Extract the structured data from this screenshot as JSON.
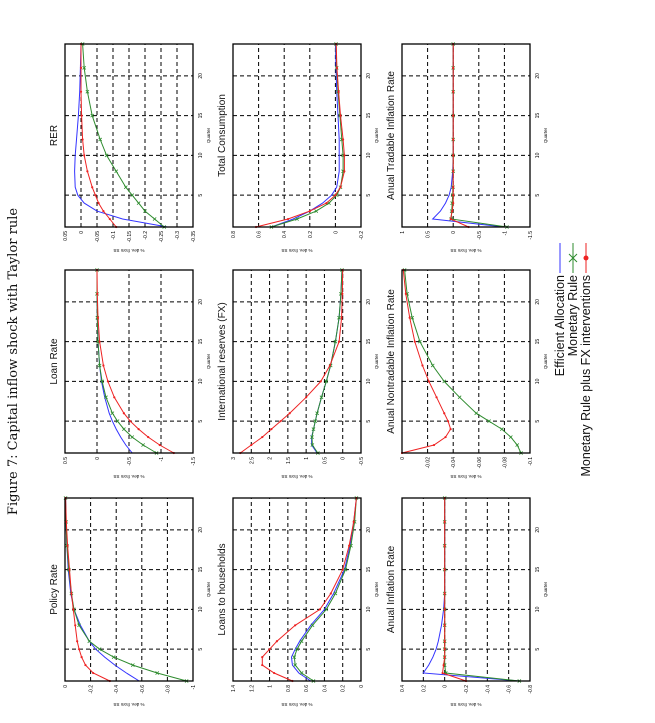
{
  "caption": "Figure 7:  Capital inflow shock with Taylor rule",
  "legend": [
    {
      "label": "Efficient Allocation",
      "color": "#3333ff",
      "marker": "none"
    },
    {
      "label": "Monetary Rule",
      "color": "#2e8b2e",
      "marker": "x"
    },
    {
      "label": "Monetary Rule plus FX interventions",
      "color": "#ee2222",
      "marker": "dot"
    }
  ],
  "chart_data": [
    {
      "type": "line",
      "title": "Policy Rate",
      "xlabel": "Quarter",
      "ylabel": "% dev. from SS",
      "xlim": [
        1,
        24
      ],
      "xticks": [
        5,
        10,
        15,
        20
      ],
      "ylim": [
        -1,
        0
      ],
      "yticks": [
        0,
        -0.2,
        -0.4,
        -0.6,
        -0.8,
        -1
      ],
      "grid": true,
      "x": [
        1,
        2,
        3,
        4,
        5,
        6,
        8,
        10,
        12,
        15,
        18,
        21,
        24
      ],
      "series": [
        {
          "name": "Efficient Allocation",
          "values": [
            -0.58,
            -0.48,
            -0.39,
            -0.31,
            -0.24,
            -0.19,
            -0.12,
            -0.07,
            -0.045,
            -0.025,
            -0.015,
            -0.008,
            -0.005
          ]
        },
        {
          "name": "Monetary Rule",
          "values": [
            -0.95,
            -0.72,
            -0.53,
            -0.38,
            -0.27,
            -0.19,
            -0.11,
            -0.07,
            -0.05,
            -0.03,
            -0.015,
            -0.008,
            -0.004
          ]
        },
        {
          "name": "Monetary Rule plus FX interventions",
          "values": [
            -0.35,
            -0.22,
            -0.16,
            -0.13,
            -0.11,
            -0.095,
            -0.08,
            -0.065,
            -0.05,
            -0.035,
            -0.02,
            -0.01,
            -0.005
          ]
        }
      ]
    },
    {
      "type": "line",
      "title": "Loan Rate",
      "xlabel": "Quarter",
      "ylabel": "% dev. from SS",
      "xlim": [
        1,
        24
      ],
      "xticks": [
        5,
        10,
        15,
        20
      ],
      "ylim": [
        -1.5,
        0.5
      ],
      "yticks": [
        0.5,
        0,
        -0.5,
        -1,
        -1.5
      ],
      "grid": true,
      "x": [
        1,
        2,
        3,
        4,
        5,
        6,
        8,
        10,
        12,
        15,
        18,
        21,
        24
      ],
      "series": [
        {
          "name": "Efficient Allocation",
          "values": [
            -0.55,
            -0.45,
            -0.37,
            -0.3,
            -0.24,
            -0.19,
            -0.12,
            -0.07,
            -0.04,
            -0.015,
            -0.005,
            0,
            0
          ]
        },
        {
          "name": "Monetary Rule",
          "values": [
            -0.93,
            -0.72,
            -0.55,
            -0.42,
            -0.32,
            -0.24,
            -0.14,
            -0.08,
            -0.04,
            -0.015,
            -0.005,
            0,
            0
          ]
        },
        {
          "name": "Monetary Rule plus FX interventions",
          "values": [
            -1.2,
            -0.98,
            -0.8,
            -0.65,
            -0.52,
            -0.42,
            -0.27,
            -0.17,
            -0.1,
            -0.04,
            -0.015,
            -0.005,
            0
          ]
        }
      ]
    },
    {
      "type": "line",
      "title": "RER",
      "xlabel": "Quarter",
      "ylabel": "% dev. from SS",
      "xlim": [
        1,
        24
      ],
      "xticks": [
        5,
        10,
        15,
        20
      ],
      "ylim": [
        -0.35,
        0.05
      ],
      "yticks": [
        0.05,
        0,
        -0.05,
        -0.1,
        -0.15,
        -0.2,
        -0.25,
        -0.3,
        -0.35
      ],
      "grid": true,
      "x": [
        1,
        2,
        3,
        4,
        5,
        6,
        8,
        10,
        12,
        15,
        18,
        21,
        24
      ],
      "series": [
        {
          "name": "Efficient Allocation",
          "values": [
            -0.27,
            -0.13,
            -0.05,
            -0.01,
            0.01,
            0.018,
            0.02,
            0.018,
            0.014,
            0.008,
            0.004,
            0.002,
            0
          ]
        },
        {
          "name": "Monetary Rule",
          "values": [
            -0.26,
            -0.23,
            -0.2,
            -0.18,
            -0.16,
            -0.14,
            -0.11,
            -0.08,
            -0.06,
            -0.035,
            -0.02,
            -0.01,
            -0.005
          ]
        },
        {
          "name": "Monetary Rule plus FX interventions",
          "values": [
            -0.11,
            -0.09,
            -0.07,
            -0.055,
            -0.045,
            -0.035,
            -0.02,
            -0.01,
            -0.005,
            -0.002,
            0,
            0,
            0
          ]
        }
      ]
    },
    {
      "type": "line",
      "title": "Loans to households",
      "xlabel": "Quarter",
      "ylabel": "% dev. from SS",
      "xlim": [
        1,
        24
      ],
      "xticks": [
        5,
        10,
        15,
        20
      ],
      "ylim": [
        0,
        1.4
      ],
      "yticks": [
        1.4,
        1.2,
        1,
        0.8,
        0.6,
        0.4,
        0.2,
        0
      ],
      "grid": true,
      "x": [
        1,
        2,
        3,
        4,
        5,
        6,
        8,
        10,
        12,
        15,
        18,
        21,
        24
      ],
      "series": [
        {
          "name": "Efficient Allocation",
          "values": [
            0.55,
            0.68,
            0.75,
            0.76,
            0.72,
            0.67,
            0.55,
            0.4,
            0.3,
            0.18,
            0.12,
            0.08,
            0.05
          ]
        },
        {
          "name": "Monetary Rule",
          "values": [
            0.52,
            0.65,
            0.72,
            0.73,
            0.7,
            0.65,
            0.53,
            0.38,
            0.28,
            0.17,
            0.11,
            0.07,
            0.05
          ]
        },
        {
          "name": "Monetary Rule plus FX interventions",
          "values": [
            0.75,
            0.95,
            1.08,
            1.08,
            1.0,
            0.92,
            0.72,
            0.45,
            0.33,
            0.2,
            0.13,
            0.08,
            0.05
          ]
        }
      ]
    },
    {
      "type": "line",
      "title": "International reserves (FX)",
      "xlabel": "Quarter",
      "ylabel": "% dev. from SS",
      "xlim": [
        1,
        24
      ],
      "xticks": [
        5,
        10,
        15,
        20
      ],
      "ylim": [
        -0.5,
        3
      ],
      "yticks": [
        3,
        2.5,
        2,
        1.5,
        1,
        0.5,
        0,
        -0.5
      ],
      "grid": true,
      "x": [
        1,
        2,
        3,
        4,
        5,
        6,
        8,
        10,
        12,
        15,
        18,
        21,
        24
      ],
      "series": [
        {
          "name": "Efficient Allocation",
          "values": [
            0.7,
            0.85,
            0.85,
            0.8,
            0.75,
            0.7,
            0.58,
            0.45,
            0.33,
            0.2,
            0.1,
            0.05,
            0.02
          ]
        },
        {
          "name": "Monetary Rule",
          "values": [
            0.68,
            0.83,
            0.84,
            0.8,
            0.75,
            0.7,
            0.58,
            0.45,
            0.33,
            0.2,
            0.1,
            0.05,
            0.02
          ]
        },
        {
          "name": "Monetary Rule plus FX interventions",
          "values": [
            2.8,
            2.5,
            2.2,
            1.95,
            1.7,
            1.45,
            1.0,
            0.6,
            0.35,
            0.1,
            0.03,
            0.01,
            0
          ]
        }
      ]
    },
    {
      "type": "line",
      "title": "Total Consumption",
      "xlabel": "Quarter",
      "ylabel": "% dev. from SS",
      "xlim": [
        1,
        24
      ],
      "xticks": [
        5,
        10,
        15,
        20
      ],
      "ylim": [
        -0.2,
        0.8
      ],
      "yticks": [
        0.8,
        0.6,
        0.4,
        0.2,
        0,
        -0.2
      ],
      "grid": true,
      "x": [
        1,
        2,
        3,
        4,
        5,
        6,
        8,
        10,
        12,
        15,
        18,
        21,
        24
      ],
      "series": [
        {
          "name": "Efficient Allocation",
          "values": [
            0.5,
            0.33,
            0.2,
            0.1,
            0.03,
            -0.01,
            -0.03,
            -0.03,
            -0.03,
            -0.02,
            -0.01,
            -0.005,
            0
          ]
        },
        {
          "name": "Monetary Rule",
          "values": [
            0.5,
            0.3,
            0.15,
            0.05,
            -0.01,
            -0.04,
            -0.06,
            -0.06,
            -0.05,
            -0.035,
            -0.02,
            -0.01,
            -0.005
          ]
        },
        {
          "name": "Monetary Rule plus FX interventions",
          "values": [
            0.62,
            0.37,
            0.2,
            0.07,
            0,
            -0.04,
            -0.07,
            -0.07,
            -0.06,
            -0.04,
            -0.025,
            -0.012,
            -0.006
          ]
        }
      ]
    },
    {
      "type": "line",
      "title": "Anual Inflation Rate",
      "xlabel": "Quarter",
      "ylabel": "% dev. from SS",
      "xlim": [
        1,
        24
      ],
      "xticks": [
        5,
        10,
        15,
        20
      ],
      "ylim": [
        -0.8,
        0.4
      ],
      "yticks": [
        0.4,
        0.2,
        0,
        -0.2,
        -0.4,
        -0.6,
        -0.8
      ],
      "grid": true,
      "x": [
        1,
        2,
        3,
        4,
        5,
        6,
        8,
        10,
        12,
        15,
        18,
        21,
        24
      ],
      "series": [
        {
          "name": "Efficient Allocation",
          "values": [
            -0.7,
            0.2,
            0.15,
            0.11,
            0.08,
            0.06,
            0.03,
            0.01,
            0,
            0,
            0,
            0,
            0
          ]
        },
        {
          "name": "Monetary Rule",
          "values": [
            -0.7,
            -0.01,
            0,
            0,
            0,
            0,
            0,
            0,
            0,
            0,
            0,
            0,
            0
          ]
        },
        {
          "name": "Monetary Rule plus FX interventions",
          "values": [
            -0.2,
            0.02,
            0.01,
            0,
            0,
            0,
            0,
            0,
            0,
            0,
            0,
            0,
            0
          ]
        }
      ]
    },
    {
      "type": "line",
      "title": "Anual Nontradable Inflation Rate",
      "xlabel": "Quarter",
      "ylabel": "% dev. from SS",
      "xlim": [
        1,
        24
      ],
      "xticks": [
        5,
        10,
        15,
        20
      ],
      "ylim": [
        -0.1,
        0
      ],
      "yticks": [
        0,
        -0.02,
        -0.04,
        -0.06,
        -0.08,
        -0.1
      ],
      "grid": true,
      "x": [
        1,
        2,
        3,
        4,
        5,
        6,
        8,
        10,
        12,
        15,
        18,
        21,
        24
      ],
      "series": [
        {
          "name": "Efficient Allocation",
          "values": [
            0,
            0,
            0,
            0,
            0,
            0,
            0,
            0,
            0,
            0,
            0,
            0,
            0
          ]
        },
        {
          "name": "Monetary Rule",
          "values": [
            -0.093,
            -0.09,
            -0.085,
            -0.078,
            -0.068,
            -0.058,
            -0.045,
            -0.033,
            -0.024,
            -0.014,
            -0.008,
            -0.004,
            -0.002
          ]
        },
        {
          "name": "Monetary Rule plus FX interventions",
          "values": [
            0,
            -0.025,
            -0.034,
            -0.038,
            -0.036,
            -0.033,
            -0.027,
            -0.021,
            -0.016,
            -0.01,
            -0.006,
            -0.003,
            -0.001
          ]
        }
      ]
    },
    {
      "type": "line",
      "title": "Anual Tradable Inflation Rate",
      "xlabel": "Quarter",
      "ylabel": "% dev. from SS",
      "xlim": [
        1,
        24
      ],
      "xticks": [
        5,
        10,
        15,
        20
      ],
      "ylim": [
        -1.5,
        1
      ],
      "yticks": [
        1,
        0.5,
        0,
        -0.5,
        -1,
        -1.5
      ],
      "grid": true,
      "x": [
        1,
        2,
        3,
        4,
        5,
        6,
        8,
        10,
        12,
        15,
        18,
        21,
        24
      ],
      "series": [
        {
          "name": "Efficient Allocation",
          "values": [
            -1.0,
            0.4,
            0.25,
            0.15,
            0.08,
            0.04,
            0.01,
            0,
            0,
            0,
            0,
            0,
            0
          ]
        },
        {
          "name": "Monetary Rule",
          "values": [
            -1.05,
            0.04,
            0.03,
            0.02,
            0.01,
            0.005,
            0,
            0,
            0,
            0,
            0,
            0,
            0
          ]
        },
        {
          "name": "Monetary Rule plus FX interventions",
          "values": [
            -0.3,
            0.05,
            0.02,
            0,
            0,
            0,
            0,
            0,
            0,
            0,
            0,
            0,
            0
          ]
        }
      ]
    }
  ]
}
